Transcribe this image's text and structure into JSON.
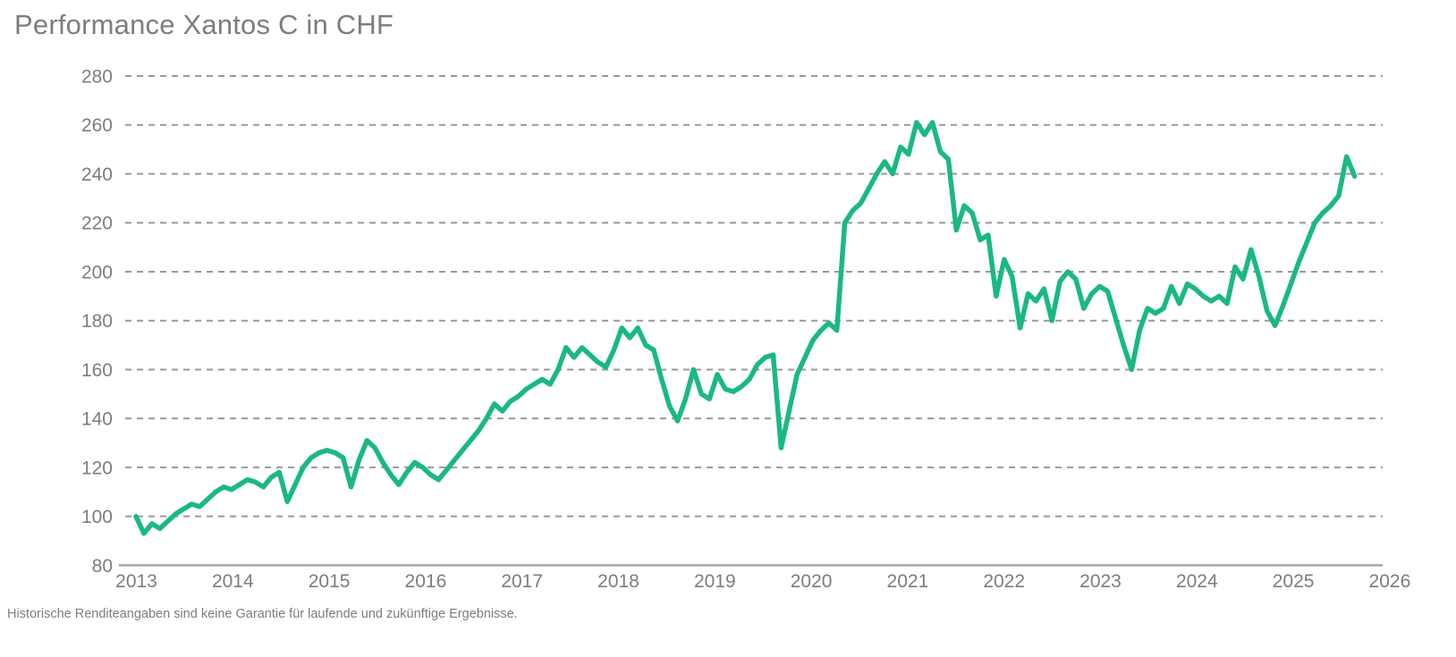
{
  "title": "Performance Xantos C in CHF",
  "footnote": "Historische Renditeangaben sind keine Garantie für laufende und zukünftige Ergebnisse.",
  "colors": {
    "line": "#1ab885",
    "gridline": "#999999",
    "baseline": "#a6a6a6",
    "text": "#7d7d7d",
    "background": "#ffffff"
  },
  "chart_data": {
    "type": "line",
    "title": "Performance Xantos C in CHF",
    "xlabel": "",
    "ylabel": "",
    "frequency": "monthly",
    "start": "2013-01",
    "end": "2025-10",
    "x_tick_labels": [
      "2013",
      "2014",
      "2015",
      "2016",
      "2017",
      "2018",
      "2019",
      "2020",
      "2021",
      "2022",
      "2023",
      "2024",
      "2025",
      "2026"
    ],
    "y_ticks": [
      280,
      260,
      240,
      220,
      200,
      180,
      160,
      140,
      120,
      100,
      80
    ],
    "ylim": [
      80,
      290
    ],
    "grid": "dashed-horizontal",
    "legend": "none",
    "series": [
      {
        "name": "Xantos C in CHF",
        "values": [
          100,
          93,
          97,
          95,
          98,
          101,
          103,
          105,
          104,
          107,
          110,
          112,
          111,
          113,
          115,
          114,
          112,
          116,
          118,
          106,
          113,
          120,
          124,
          126,
          127,
          126,
          124,
          112,
          123,
          131,
          128,
          122,
          117,
          113,
          118,
          122,
          120,
          117,
          115,
          119,
          123,
          127,
          131,
          135,
          140,
          146,
          143,
          147,
          149,
          152,
          154,
          156,
          154,
          160,
          169,
          165,
          169,
          166,
          163,
          161,
          168,
          177,
          173,
          177,
          170,
          168,
          156,
          145,
          139,
          148,
          160,
          150,
          148,
          158,
          152,
          151,
          153,
          156,
          162,
          165,
          166,
          128,
          143,
          158,
          165,
          172,
          176,
          179,
          176,
          220,
          225,
          228,
          234,
          240,
          245,
          240,
          251,
          248,
          261,
          256,
          261,
          249,
          246,
          217,
          227,
          224,
          213,
          215,
          190,
          205,
          198,
          177,
          191,
          188,
          193,
          180,
          196,
          200,
          197,
          185,
          191,
          194,
          192,
          181,
          170,
          160,
          176,
          185,
          183,
          185,
          194,
          187,
          195,
          193,
          190,
          188,
          190,
          187,
          202,
          197,
          209,
          198,
          184,
          178,
          186,
          195,
          204,
          212,
          220,
          224,
          227,
          231,
          247,
          239
        ]
      }
    ]
  }
}
